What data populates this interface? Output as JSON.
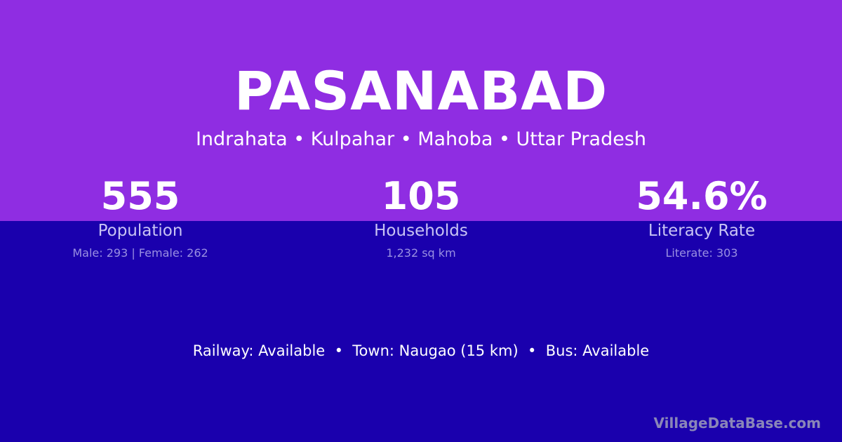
{
  "village": {
    "name": "PASANABAD",
    "location": "Indrahata • Kulpahar • Mahoba • Uttar Pradesh"
  },
  "stats": [
    {
      "value": "555",
      "label": "Population",
      "detail": "Male: 293 | Female: 262"
    },
    {
      "value": "105",
      "label": "Households",
      "detail": "1,232 sq km"
    },
    {
      "value": "54.6%",
      "label": "Literacy Rate",
      "detail": "Literate: 303"
    }
  ],
  "facts": "Railway: Available  •  Town: Naugao (15 km)  •  Bus: Available",
  "brand": "VillageDataBase.com",
  "colors": {
    "top_background": "#8f2de2",
    "bottom_background": "#1a00ad"
  }
}
